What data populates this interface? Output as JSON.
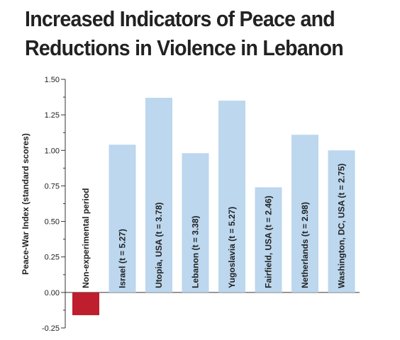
{
  "chart_data": {
    "type": "bar",
    "title_lines": [
      "Increased Indicators of Peace and",
      "Reductions in Violence in Lebanon"
    ],
    "ylabel": "Peace-War Index (standard scores)",
    "xlabel": "",
    "ylim": [
      -0.25,
      1.5
    ],
    "yticks": [
      "1.50",
      "1.25",
      "1.00",
      "0.75",
      "0.50",
      "0.25",
      "0.00",
      "-0.25"
    ],
    "yticks_values": [
      1.5,
      1.25,
      1.0,
      0.75,
      0.5,
      0.25,
      0.0,
      -0.25
    ],
    "grid": false,
    "categories": [
      "Non-experimental period",
      "Israel (t = 5.27)",
      "Utopia, USA (t = 3.78)",
      "Lebanon (t = 3.38)",
      "Yugoslavia (t = 5.27)",
      "Fairfield, USA (t = 2.46)",
      "Netherlands (t = 2.98)",
      "Washington, DC, USA (t = 2.75)"
    ],
    "values": [
      -0.16,
      1.04,
      1.37,
      0.98,
      1.35,
      0.74,
      1.11,
      1.0
    ],
    "colors": {
      "negative": "#be1e2d",
      "positive": "#bcd7ee",
      "axis": "#333333"
    }
  }
}
